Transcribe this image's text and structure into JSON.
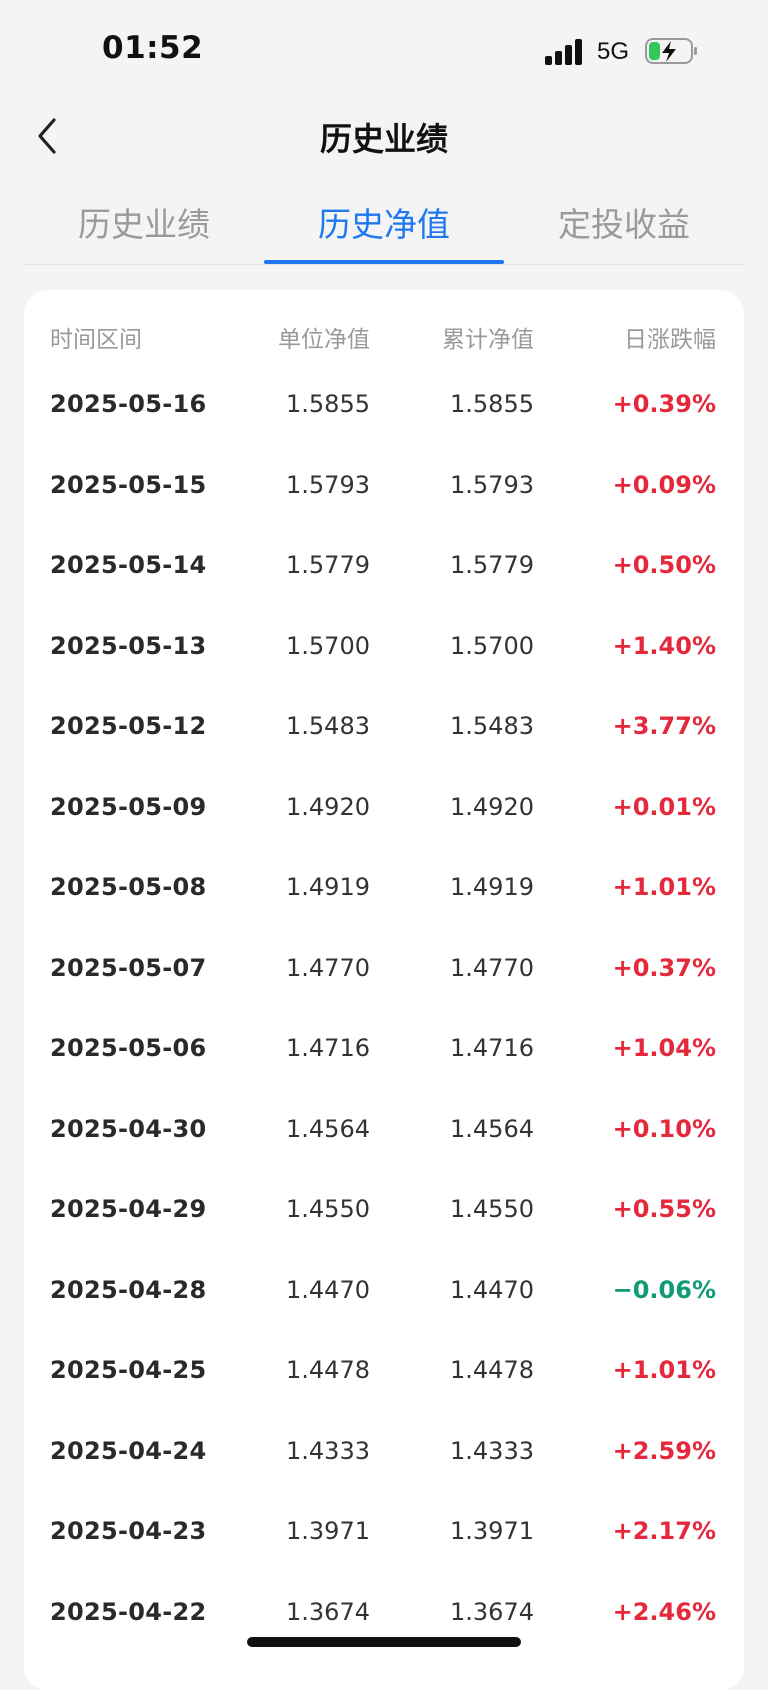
{
  "status_bar": {
    "time": "01:52",
    "network": "5G"
  },
  "nav": {
    "title": "历史业绩"
  },
  "tabs": [
    {
      "label": "历史业绩",
      "active": false
    },
    {
      "label": "历史净值",
      "active": true
    },
    {
      "label": "定投收益",
      "active": false
    }
  ],
  "colors": {
    "accent": "#1f78f0",
    "up": "#e5293c",
    "down": "#0f9c74"
  },
  "table": {
    "headers": {
      "date": "时间区间",
      "unit_nav": "单位净值",
      "acc_nav": "累计净值",
      "change": "日涨跌幅"
    },
    "rows": [
      {
        "date": "2025-05-16",
        "unit_nav": "1.5855",
        "acc_nav": "1.5855",
        "change": "+0.39%"
      },
      {
        "date": "2025-05-15",
        "unit_nav": "1.5793",
        "acc_nav": "1.5793",
        "change": "+0.09%"
      },
      {
        "date": "2025-05-14",
        "unit_nav": "1.5779",
        "acc_nav": "1.5779",
        "change": "+0.50%"
      },
      {
        "date": "2025-05-13",
        "unit_nav": "1.5700",
        "acc_nav": "1.5700",
        "change": "+1.40%"
      },
      {
        "date": "2025-05-12",
        "unit_nav": "1.5483",
        "acc_nav": "1.5483",
        "change": "+3.77%"
      },
      {
        "date": "2025-05-09",
        "unit_nav": "1.4920",
        "acc_nav": "1.4920",
        "change": "+0.01%"
      },
      {
        "date": "2025-05-08",
        "unit_nav": "1.4919",
        "acc_nav": "1.4919",
        "change": "+1.01%"
      },
      {
        "date": "2025-05-07",
        "unit_nav": "1.4770",
        "acc_nav": "1.4770",
        "change": "+0.37%"
      },
      {
        "date": "2025-05-06",
        "unit_nav": "1.4716",
        "acc_nav": "1.4716",
        "change": "+1.04%"
      },
      {
        "date": "2025-04-30",
        "unit_nav": "1.4564",
        "acc_nav": "1.4564",
        "change": "+0.10%"
      },
      {
        "date": "2025-04-29",
        "unit_nav": "1.4550",
        "acc_nav": "1.4550",
        "change": "+0.55%"
      },
      {
        "date": "2025-04-28",
        "unit_nav": "1.4470",
        "acc_nav": "1.4470",
        "change": "−0.06%"
      },
      {
        "date": "2025-04-25",
        "unit_nav": "1.4478",
        "acc_nav": "1.4478",
        "change": "+1.01%"
      },
      {
        "date": "2025-04-24",
        "unit_nav": "1.4333",
        "acc_nav": "1.4333",
        "change": "+2.59%"
      },
      {
        "date": "2025-04-23",
        "unit_nav": "1.3971",
        "acc_nav": "1.3971",
        "change": "+2.17%"
      },
      {
        "date": "2025-04-22",
        "unit_nav": "1.3674",
        "acc_nav": "1.3674",
        "change": "+2.46%"
      }
    ]
  }
}
